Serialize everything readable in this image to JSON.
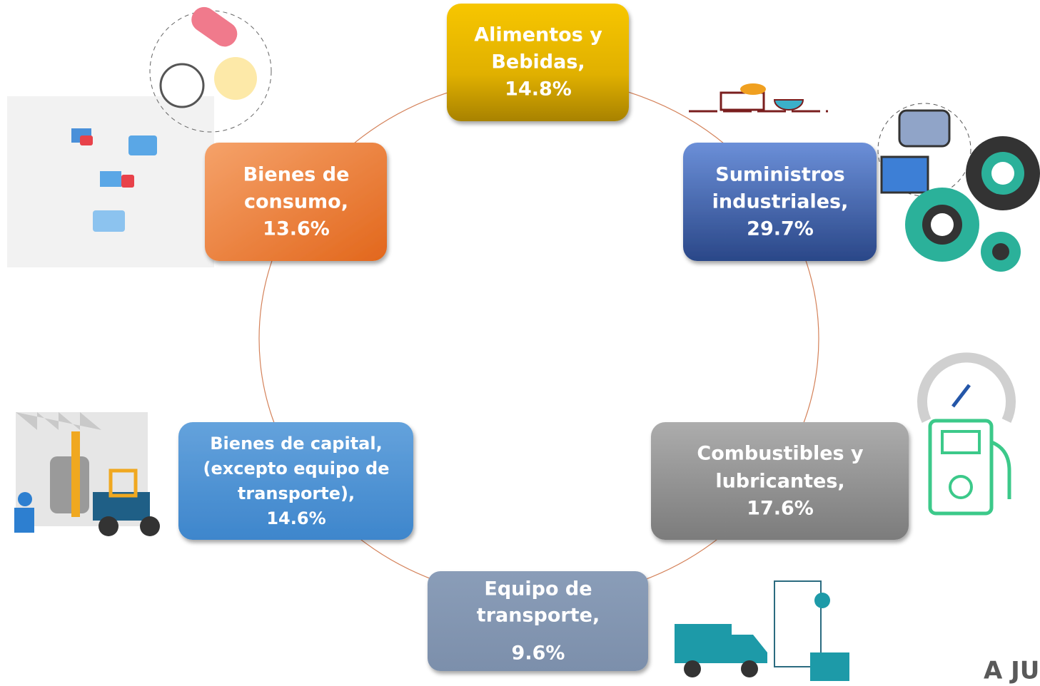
{
  "nodes": [
    {
      "lines": [
        "Alimentos y",
        "Bebidas,",
        "14.8%"
      ]
    },
    {
      "lines": [
        "Suministros",
        "industriales,",
        "29.7%"
      ]
    },
    {
      "lines": [
        "Combustibles y",
        "lubricantes,",
        "17.6%"
      ]
    },
    {
      "lines": [
        "Equipo de",
        "transporte,",
        "9.6%"
      ]
    },
    {
      "lines": [
        "Bienes de capital,",
        "(excepto equipo de",
        "transporte),",
        "14.6%"
      ]
    },
    {
      "lines": [
        "Bienes de",
        "consumo,",
        "13.6%"
      ]
    }
  ],
  "footer": "A JU"
}
